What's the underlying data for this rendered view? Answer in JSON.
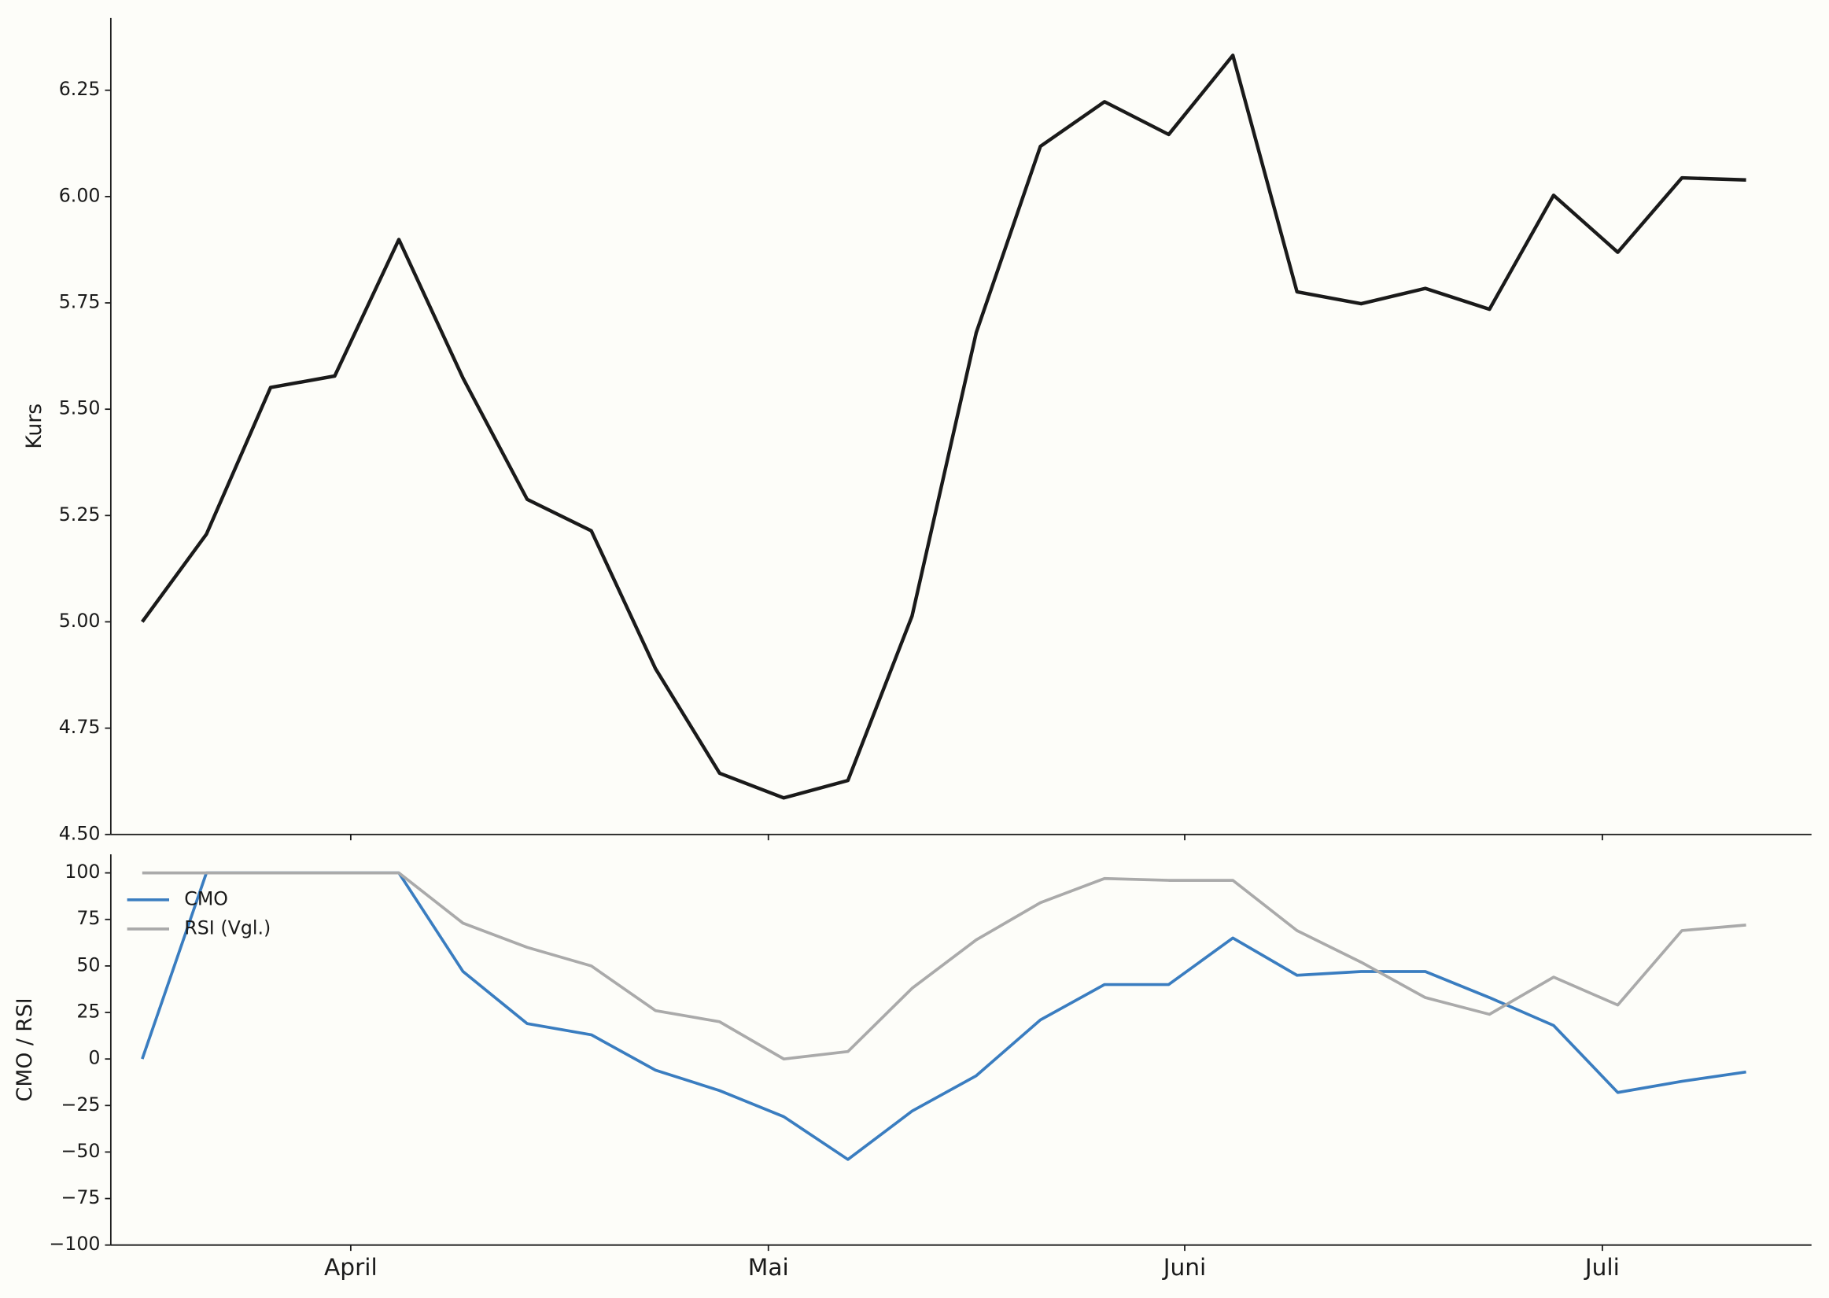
{
  "chart_data": [
    {
      "type": "line",
      "ylabel": "Kurs",
      "series": [
        {
          "color": "#1a1a1a",
          "values": [
            5.0,
            5.206,
            5.551,
            5.578,
            5.899,
            5.573,
            5.288,
            5.214,
            4.89,
            4.644,
            4.586,
            4.627,
            5.014,
            5.68,
            6.118,
            6.223,
            6.146,
            6.332,
            5.776,
            5.748,
            5.784,
            5.735,
            6.003,
            5.869,
            6.044,
            6.039
          ]
        }
      ],
      "xlim": [
        -0.49,
        26.02
      ],
      "ylim": [
        4.5,
        6.42
      ],
      "yticks": [
        {
          "value": 4.5,
          "label": "4.50"
        },
        {
          "value": 4.75,
          "label": "4.75"
        },
        {
          "value": 5.0,
          "label": "5.00"
        },
        {
          "value": 5.25,
          "label": "5.25"
        },
        {
          "value": 5.5,
          "label": "5.50"
        },
        {
          "value": 5.75,
          "label": "5.75"
        },
        {
          "value": 6.0,
          "label": "6.00"
        },
        {
          "value": 6.25,
          "label": "6.25"
        }
      ]
    },
    {
      "type": "line",
      "ylabel": "CMO / RSI",
      "legend": "upper left",
      "series": [
        {
          "name": "CMO",
          "color": "#3a7dc0",
          "values": [
            0,
            100,
            100,
            100,
            100,
            47,
            19,
            13,
            -6,
            -17,
            -31,
            -54,
            -28,
            -9,
            21,
            40,
            40,
            65,
            45,
            47,
            47,
            33,
            18,
            -18,
            -12,
            -7
          ]
        },
        {
          "name": "RSI (Vgl.)",
          "color": "#aaaaaa",
          "values": [
            100,
            100,
            100,
            100,
            100,
            73,
            60,
            50,
            26,
            20,
            0,
            4,
            38,
            64,
            84,
            97,
            96,
            96,
            69,
            52,
            33,
            24,
            44,
            29,
            69,
            72
          ]
        }
      ],
      "xlim": [
        -0.49,
        26.02
      ],
      "xticks": [
        {
          "value": 3.25,
          "label": "April"
        },
        {
          "value": 9.76,
          "label": "Mai"
        },
        {
          "value": 16.25,
          "label": "Juni"
        },
        {
          "value": 22.76,
          "label": "Juli"
        }
      ],
      "ylim": [
        -100,
        110
      ],
      "yticks": [
        {
          "value": -100,
          "label": "−100"
        },
        {
          "value": -75,
          "label": "−75"
        },
        {
          "value": -50,
          "label": "−50"
        },
        {
          "value": -25,
          "label": "−25"
        },
        0,
        25,
        50,
        75,
        100
      ]
    }
  ]
}
